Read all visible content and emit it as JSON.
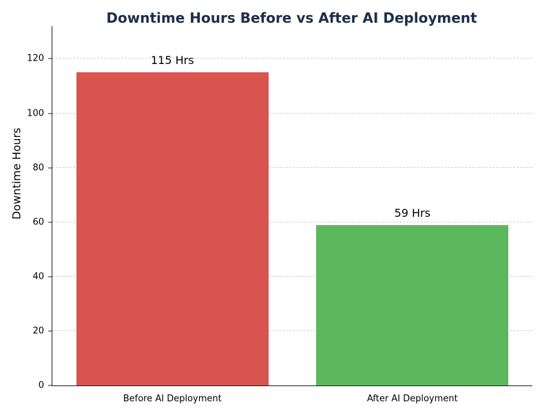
{
  "chart_data": {
    "type": "bar",
    "title": "Downtime Hours Before vs After AI Deployment",
    "ylabel": "Downtime Hours",
    "xlabel": "",
    "categories": [
      "Before AI Deployment",
      "After AI Deployment"
    ],
    "values": [
      115,
      59
    ],
    "value_labels": [
      "115 Hrs",
      "59 Hrs"
    ],
    "bar_colors": [
      "#d9534f",
      "#5cb85c"
    ],
    "ylim": [
      0,
      132
    ],
    "yticks": [
      0,
      20,
      40,
      60,
      80,
      100,
      120
    ],
    "grid": "horizontal-dashed",
    "legend": "none",
    "title_color": "#1c2e4a",
    "background_color": "#ffffff"
  }
}
